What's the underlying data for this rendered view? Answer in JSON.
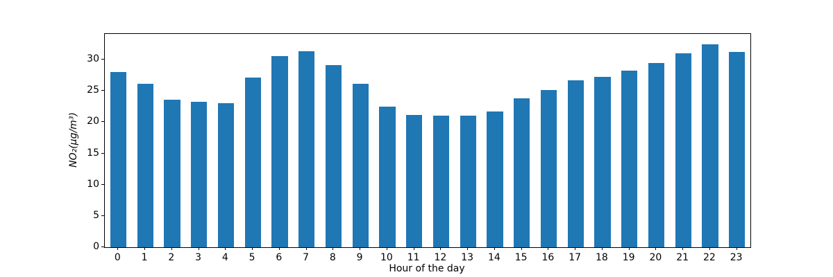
{
  "chart_data": {
    "type": "bar",
    "title": "",
    "xlabel": "Hour of the day",
    "ylabel": "NO₂(µg/m³)",
    "categories": [
      "0",
      "1",
      "2",
      "3",
      "4",
      "5",
      "6",
      "7",
      "8",
      "9",
      "10",
      "11",
      "12",
      "13",
      "14",
      "15",
      "16",
      "17",
      "18",
      "19",
      "20",
      "21",
      "22",
      "23"
    ],
    "values": [
      28.0,
      26.1,
      23.6,
      23.3,
      23.0,
      27.1,
      30.6,
      31.3,
      29.1,
      26.1,
      22.5,
      21.2,
      21.0,
      21.0,
      21.7,
      23.8,
      25.1,
      26.7,
      27.2,
      28.2,
      29.4,
      31.0,
      32.4,
      31.2
    ],
    "yticks": [
      0,
      5,
      10,
      15,
      20,
      25,
      30
    ],
    "ylim": [
      0,
      34.1
    ],
    "grid": false,
    "legend_position": "none",
    "bar_color": "#1f77b4",
    "background_color": "#ffffff",
    "spine_color": "#000000",
    "text_color": "#000000"
  }
}
